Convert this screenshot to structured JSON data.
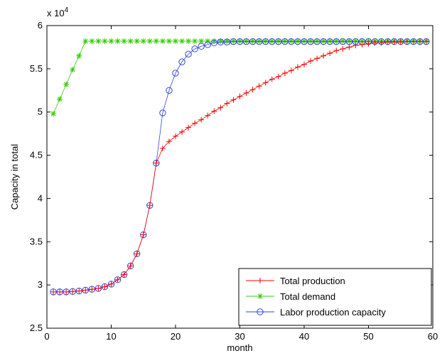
{
  "chart_data": {
    "type": "line",
    "xlabel": "month",
    "ylabel": "Capacity in total",
    "y_exponent_label": "x 10",
    "y_exponent": "4",
    "xlim": [
      0,
      60
    ],
    "ylim": [
      25000,
      60000
    ],
    "x_ticks": [
      0,
      10,
      20,
      30,
      40,
      50,
      60
    ],
    "y_ticks": [
      25000,
      30000,
      35000,
      40000,
      45000,
      50000,
      55000,
      60000
    ],
    "x_tick_labels": [
      "0",
      "10",
      "20",
      "30",
      "40",
      "50",
      "60"
    ],
    "y_tick_labels": [
      "2.5",
      "3",
      "3.5",
      "4",
      "4.5",
      "5",
      "5.5",
      "6"
    ],
    "grid": false,
    "legend_position": "bottom-right",
    "series": [
      {
        "name": "Total production",
        "color": "#ff0000",
        "marker": "plus",
        "x": [
          1,
          2,
          3,
          4,
          5,
          6,
          7,
          8,
          9,
          10,
          11,
          12,
          13,
          14,
          15,
          16,
          17,
          18,
          19,
          20,
          21,
          22,
          23,
          24,
          25,
          26,
          27,
          28,
          29,
          30,
          31,
          32,
          33,
          34,
          35,
          36,
          37,
          38,
          39,
          40,
          41,
          42,
          43,
          44,
          45,
          46,
          47,
          48,
          49,
          50,
          51,
          52,
          53,
          54,
          55,
          56,
          57,
          58,
          59
        ],
        "values": [
          29200,
          29200,
          29200,
          29250,
          29300,
          29400,
          29500,
          29600,
          29800,
          30100,
          30600,
          31200,
          32200,
          33600,
          35800,
          39200,
          44100,
          45800,
          46600,
          47200,
          47700,
          48200,
          48700,
          49100,
          49600,
          50100,
          50500,
          51000,
          51400,
          51800,
          52200,
          52600,
          53000,
          53400,
          53800,
          54100,
          54500,
          54800,
          55200,
          55500,
          55900,
          56200,
          56500,
          56800,
          57100,
          57300,
          57500,
          57700,
          57800,
          57900,
          58000,
          58000,
          58100,
          58100,
          58100,
          58150,
          58150,
          58150,
          58150
        ]
      },
      {
        "name": "Total demand",
        "color": "#33cc00",
        "marker": "star",
        "x": [
          1,
          2,
          3,
          4,
          5,
          6,
          7,
          8,
          9,
          10,
          11,
          12,
          13,
          14,
          15,
          16,
          17,
          18,
          19,
          20,
          21,
          22,
          23,
          24,
          25,
          26,
          27,
          28,
          29,
          30,
          31,
          32,
          33,
          34,
          35,
          36,
          37,
          38,
          39,
          40,
          41,
          42,
          43,
          44,
          45,
          46,
          47,
          48,
          49,
          50,
          51,
          52,
          53,
          54,
          55,
          56,
          57,
          58,
          59
        ],
        "values": [
          49800,
          51500,
          53200,
          54900,
          56500,
          58200,
          58200,
          58200,
          58200,
          58200,
          58200,
          58200,
          58200,
          58200,
          58200,
          58200,
          58200,
          58200,
          58200,
          58200,
          58200,
          58200,
          58200,
          58200,
          58200,
          58200,
          58200,
          58200,
          58200,
          58200,
          58200,
          58200,
          58200,
          58200,
          58200,
          58200,
          58200,
          58200,
          58200,
          58200,
          58200,
          58200,
          58200,
          58200,
          58200,
          58200,
          58200,
          58200,
          58200,
          58200,
          58200,
          58200,
          58200,
          58200,
          58200,
          58200,
          58200,
          58200,
          58200
        ]
      },
      {
        "name": "Labor production capacity",
        "color": "#3344dd",
        "marker": "circle",
        "x": [
          1,
          2,
          3,
          4,
          5,
          6,
          7,
          8,
          9,
          10,
          11,
          12,
          13,
          14,
          15,
          16,
          17,
          18,
          19,
          20,
          21,
          22,
          23,
          24,
          25,
          26,
          27,
          28,
          29,
          30,
          31,
          32,
          33,
          34,
          35,
          36,
          37,
          38,
          39,
          40,
          41,
          42,
          43,
          44,
          45,
          46,
          47,
          48,
          49,
          50,
          51,
          52,
          53,
          54,
          55,
          56,
          57,
          58,
          59
        ],
        "values": [
          29200,
          29200,
          29200,
          29250,
          29300,
          29400,
          29500,
          29600,
          29800,
          30100,
          30600,
          31200,
          32200,
          33600,
          35800,
          39200,
          44100,
          49900,
          52500,
          54500,
          55800,
          56700,
          57300,
          57600,
          57800,
          58000,
          58100,
          58100,
          58150,
          58150,
          58150,
          58150,
          58150,
          58150,
          58150,
          58150,
          58150,
          58150,
          58150,
          58150,
          58150,
          58150,
          58150,
          58150,
          58150,
          58150,
          58150,
          58150,
          58150,
          58150,
          58150,
          58150,
          58150,
          58150,
          58150,
          58150,
          58150,
          58150,
          58150
        ]
      }
    ]
  }
}
